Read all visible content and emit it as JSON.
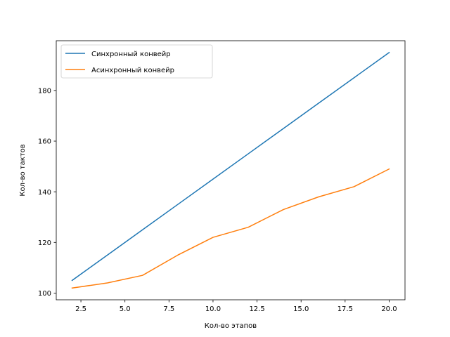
{
  "chart_data": {
    "type": "line",
    "title": "",
    "xlabel": "Кол-во этапов",
    "ylabel": "Кол-во тактов",
    "xlim": [
      1.1,
      20.9
    ],
    "ylim": [
      97.35,
      199.65
    ],
    "x_ticks": [
      2.5,
      5.0,
      7.5,
      10.0,
      12.5,
      15.0,
      17.5,
      20.0
    ],
    "x_tick_labels": [
      "2.5",
      "5.0",
      "7.5",
      "10.0",
      "12.5",
      "15.0",
      "17.5",
      "20.0"
    ],
    "y_ticks": [
      100,
      120,
      140,
      160,
      180
    ],
    "y_tick_labels": [
      "100",
      "120",
      "140",
      "160",
      "180"
    ],
    "grid": false,
    "legend_position": "top-left",
    "series": [
      {
        "name": "Синхронный конвейр",
        "color": "#1f77b4",
        "x": [
          2,
          4,
          6,
          8,
          10,
          12,
          14,
          16,
          18,
          20
        ],
        "y": [
          105,
          115,
          125,
          135,
          145,
          155,
          165,
          175,
          185,
          195
        ]
      },
      {
        "name": "Асинхронный конвейр",
        "color": "#ff7f0e",
        "x": [
          2,
          4,
          6,
          8,
          10,
          12,
          14,
          16,
          18,
          20
        ],
        "y": [
          102,
          104,
          107,
          115,
          122,
          126,
          133,
          138,
          142,
          149
        ]
      }
    ]
  }
}
